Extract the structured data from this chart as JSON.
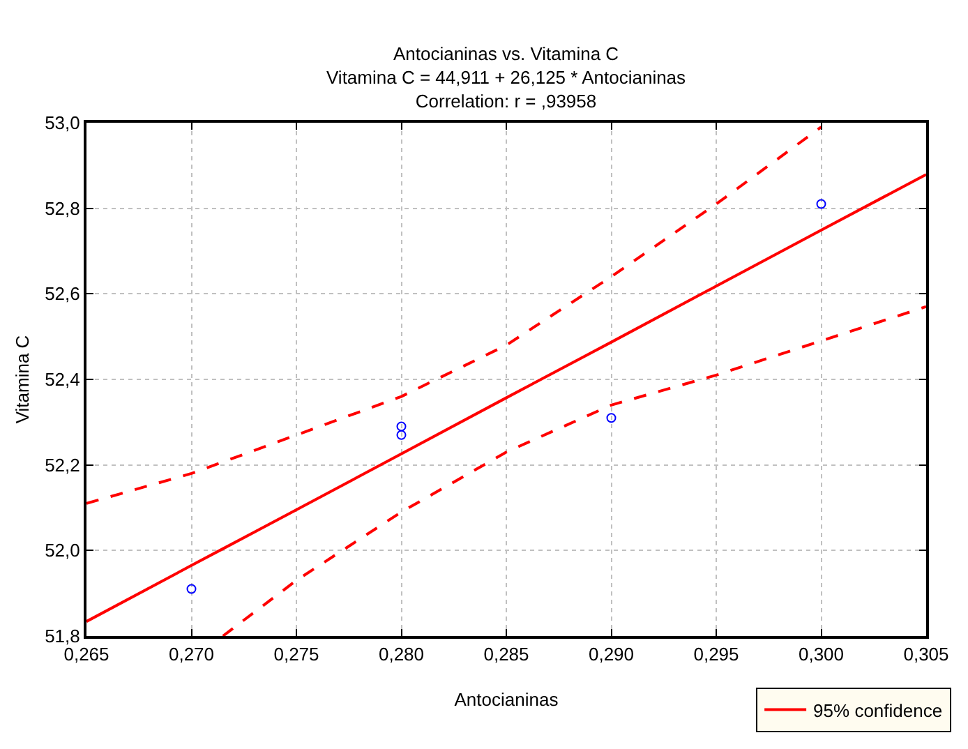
{
  "chart_data": {
    "type": "scatter",
    "title": "Antocianinas vs. Vitamina C",
    "subtitle": "Vitamina C = 44,911 + 26,125 * Antocianinas",
    "annotations": [
      "Correlation: r = ,93958"
    ],
    "xlabel": "Antocianinas",
    "ylabel": "Vitamina C",
    "series": [
      {
        "color": "#0000ff",
        "marker": "circle",
        "x": [
          0.27,
          0.28,
          0.28,
          0.29,
          0.3
        ],
        "values": [
          51.91,
          52.29,
          52.27,
          52.31,
          52.81
        ]
      },
      {
        "type": "line",
        "name": "95% confidence",
        "color": "#ff0000",
        "marker": "none",
        "line_style": "solid",
        "x": [
          0.265,
          0.27,
          0.2715,
          0.275,
          0.28,
          0.285,
          0.29,
          0.295,
          0.3,
          0.305
        ],
        "values": [
          51.834,
          51.965,
          52.004,
          52.095,
          52.226,
          52.357,
          52.487,
          52.618,
          52.749,
          52.879
        ]
      },
      {
        "type": "line",
        "color": "#ff0000",
        "marker": "none",
        "line_style": "dashed",
        "x": [
          0.265,
          0.27,
          0.275,
          0.28,
          0.285,
          0.29,
          0.295,
          0.3
        ],
        "values": [
          52.11,
          52.18,
          52.27,
          52.36,
          52.48,
          52.64,
          52.81,
          52.99
        ]
      },
      {
        "type": "line",
        "color": "#ff0000",
        "marker": "none",
        "line_style": "dashed",
        "x": [
          0.2715,
          0.275,
          0.28,
          0.285,
          0.29,
          0.295,
          0.3,
          0.305
        ],
        "values": [
          51.8,
          51.93,
          52.09,
          52.23,
          52.34,
          52.41,
          52.49,
          52.57
        ]
      }
    ],
    "xlim": [
      0.265,
      0.305
    ],
    "xticks": [
      {
        "value": 0.265,
        "label": "0,265"
      },
      {
        "value": 0.27,
        "label": "0,270"
      },
      {
        "value": 0.275,
        "label": "0,275"
      },
      {
        "value": 0.28,
        "label": "0,280"
      },
      {
        "value": 0.285,
        "label": "0,285"
      },
      {
        "value": 0.29,
        "label": "0,290"
      },
      {
        "value": 0.295,
        "label": "0,295"
      },
      {
        "value": 0.3,
        "label": "0,300"
      },
      {
        "value": 0.305,
        "label": "0,305"
      }
    ],
    "ylim": [
      51.8,
      53.0
    ],
    "yticks": [
      {
        "value": 51.8,
        "label": "51,8"
      },
      {
        "value": 52.0,
        "label": "52,0"
      },
      {
        "value": 52.2,
        "label": "52,2"
      },
      {
        "value": 52.4,
        "label": "52,4"
      },
      {
        "value": 52.6,
        "label": "52,6"
      },
      {
        "value": 52.8,
        "label": "52,8"
      },
      {
        "value": 53.0,
        "label": "53,0"
      }
    ],
    "grid": true,
    "legend": "bottom right"
  }
}
